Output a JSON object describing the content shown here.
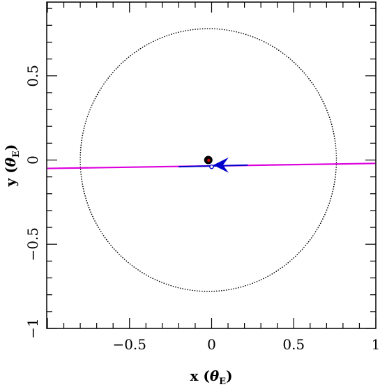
{
  "chart_data": {
    "type": "scatter",
    "xlim": [
      -1,
      1
    ],
    "ylim": [
      -1,
      1
    ],
    "x_ticks": [
      -0.5,
      0,
      0.5,
      1
    ],
    "x_tick_labels": [
      "−0.5",
      "0",
      "0.5",
      "1"
    ],
    "y_ticks": [
      -1,
      -0.5,
      0,
      0.5
    ],
    "y_tick_labels": [
      "−1",
      "−0.5",
      "0",
      "0.5"
    ],
    "xlabel": {
      "prefix": "x (",
      "symbol": "θ",
      "sub": "E",
      "suffix": ")"
    },
    "ylabel": {
      "prefix": "y (",
      "symbol": "θ",
      "sub": "E",
      "suffix": ")"
    },
    "grid": false,
    "einstein_ring": {
      "center": [
        -0.02,
        0.0
      ],
      "radius": 0.78,
      "style": "dotted",
      "color": "#000000"
    },
    "source_trajectory": {
      "points": [
        [
          -1.0,
          -0.05
        ],
        [
          1.0,
          -0.02
        ]
      ],
      "color": "#dd00dd"
    },
    "lens_motion_segment": {
      "points": [
        [
          -0.2,
          -0.04
        ],
        [
          0.22,
          -0.03
        ]
      ],
      "color": "#0000cc"
    },
    "direction_arrow": {
      "tip": [
        0.01,
        -0.03
      ],
      "color": "#0000cc"
    },
    "lens_primary": {
      "x": -0.02,
      "y": 0.0,
      "color": "#000000",
      "inner_color": "#cc0000"
    },
    "lens_companion": {
      "x": 0.0,
      "y": -0.04,
      "color": "#0000cc"
    }
  }
}
